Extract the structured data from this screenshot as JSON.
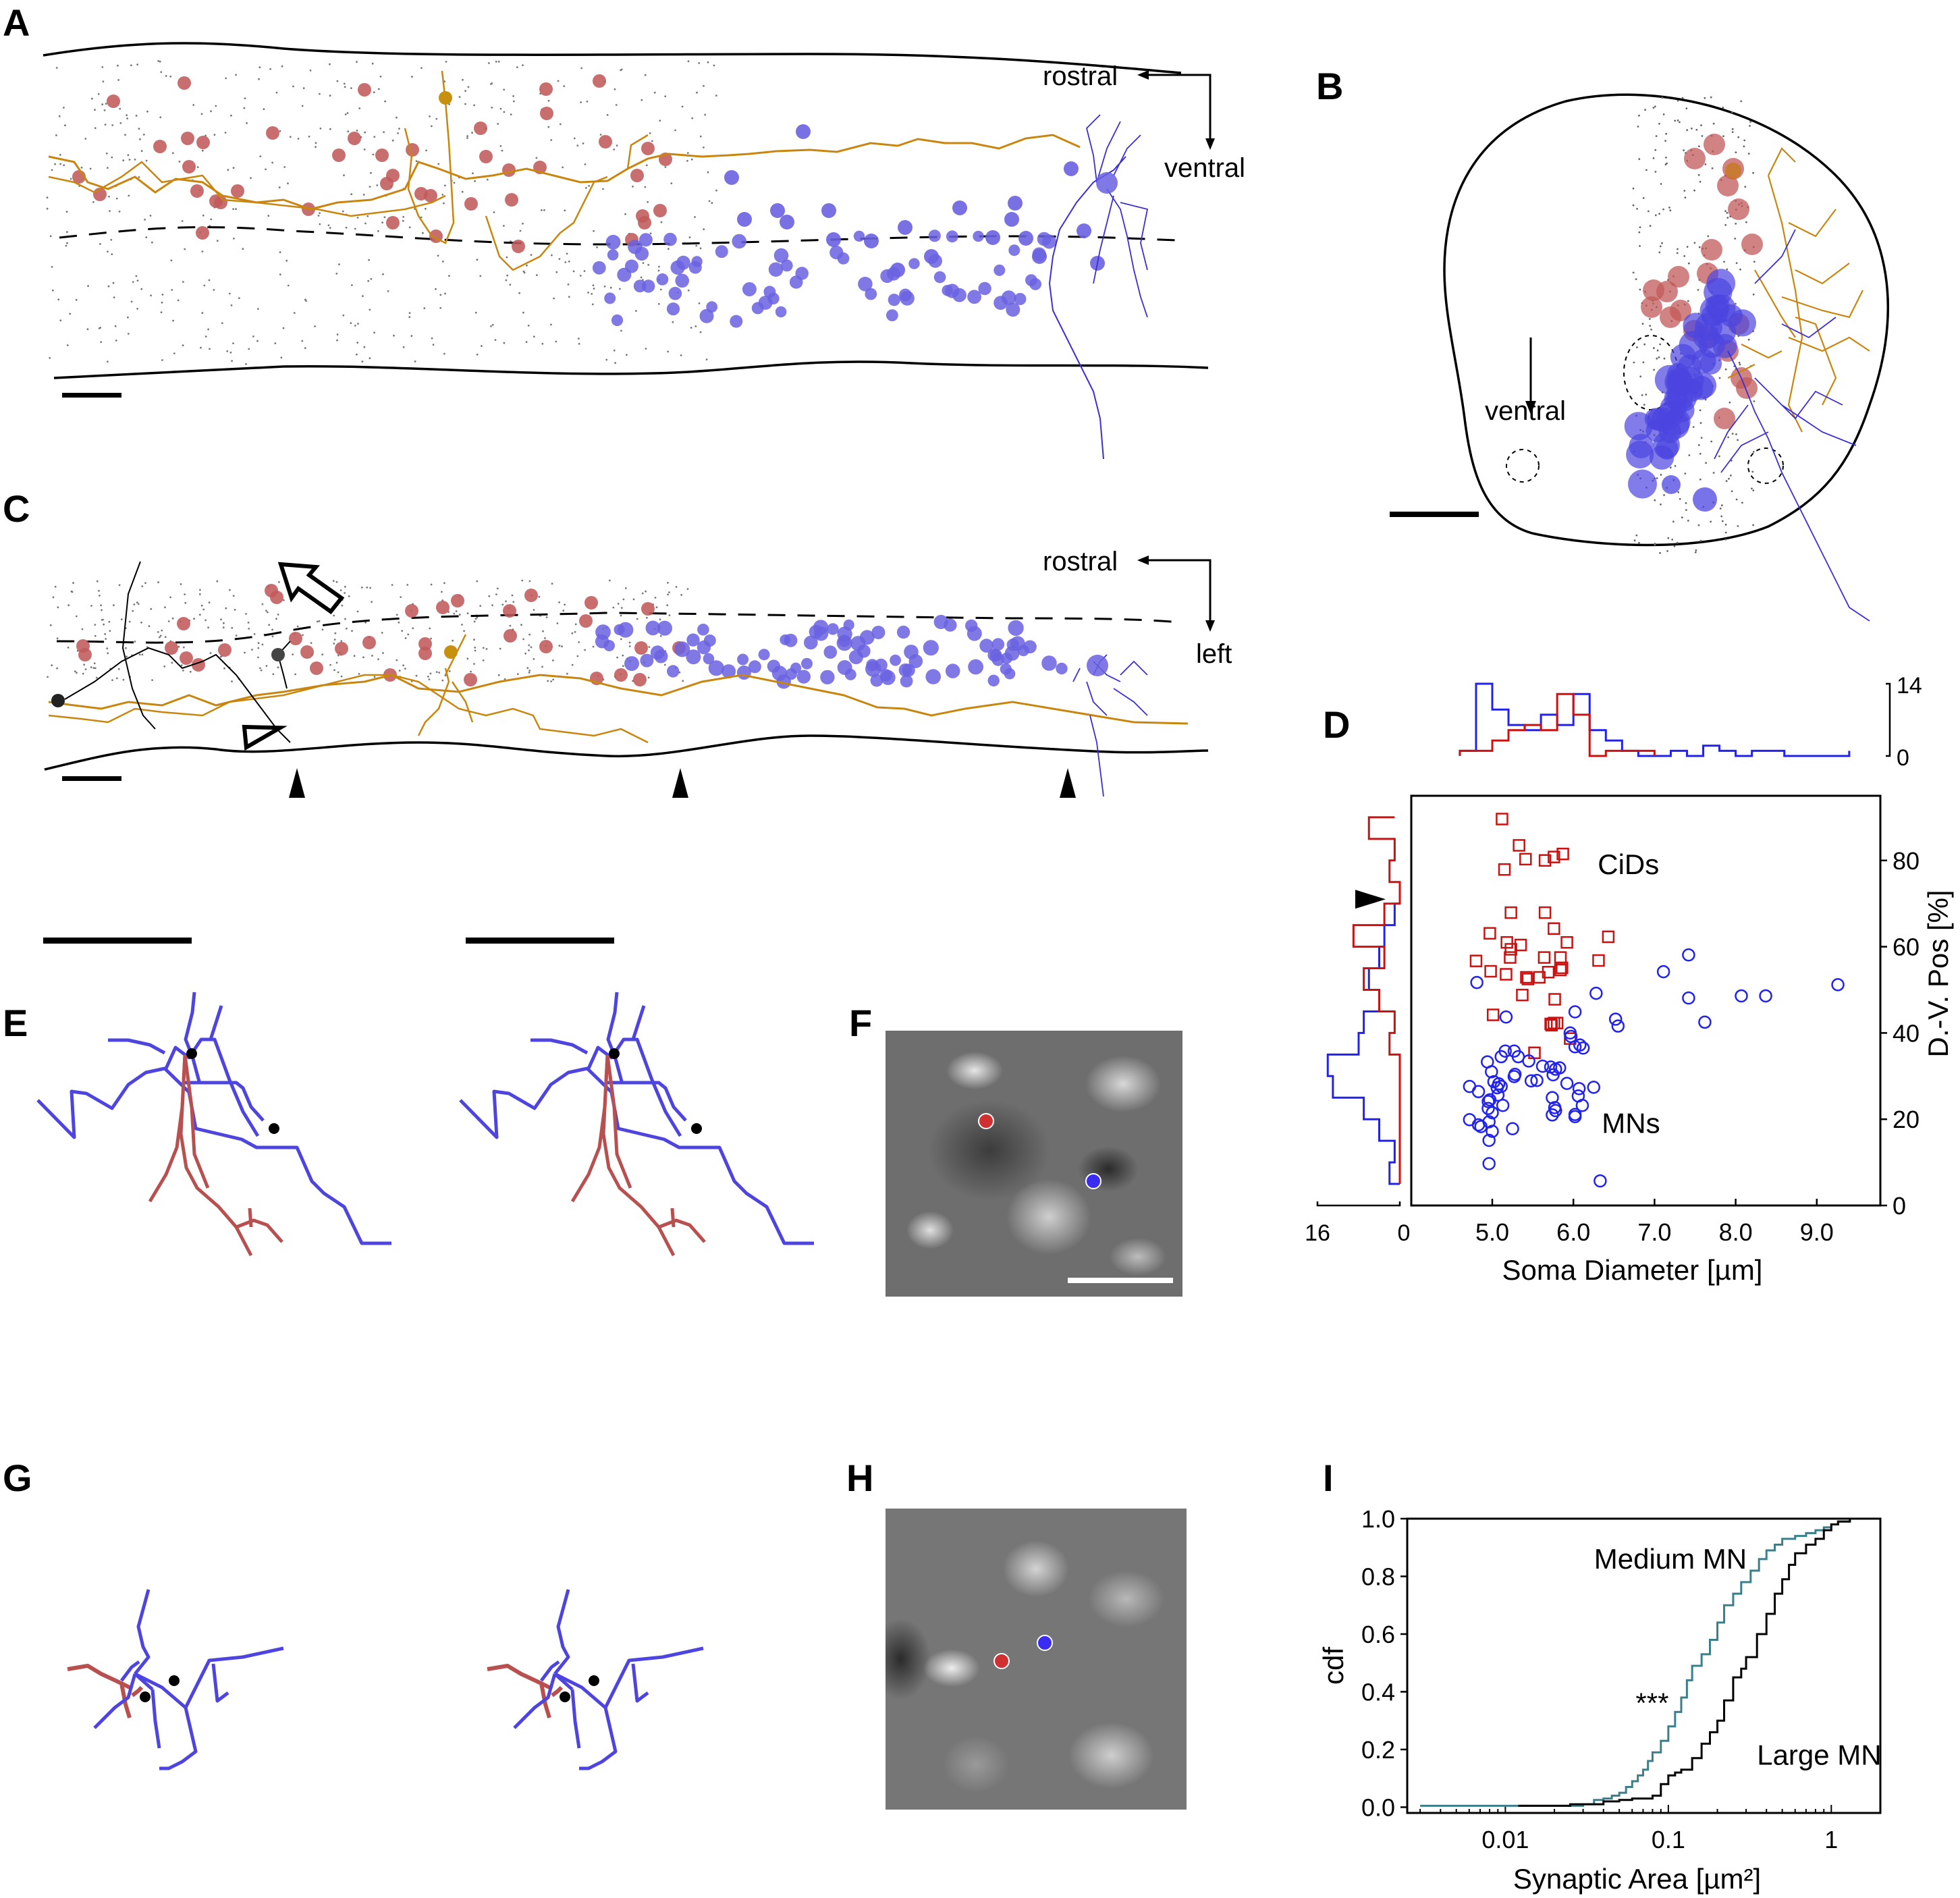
{
  "figure": {
    "panel_letters": [
      "A",
      "B",
      "C",
      "D",
      "E",
      "F",
      "G",
      "H",
      "I"
    ],
    "colors": {
      "cid_red": "#c25a5a",
      "cid_marker_red": "#cc1111",
      "mn_blue": "#6a62e0",
      "mn_marker_blue": "#2222ee",
      "axon_orange": "#c8860f",
      "medium_mn_teal": "#3b7f8a",
      "large_mn_black": "#000000"
    }
  },
  "panel_a": {
    "orientation": {
      "horizontal": "rostral",
      "vertical": "ventral"
    },
    "description": "Lateral view of spinal cord with CiD somata (red), MN somata (blue), reconstructed CiD (orange) and MN (blue) arbors"
  },
  "panel_b": {
    "orientation": {
      "vertical": "ventral"
    },
    "description": "Cross-sectional view of spinal cord"
  },
  "panel_c": {
    "orientation": {
      "horizontal": "rostral",
      "vertical": "left"
    },
    "description": "Dorsal view; open arrow, open arrowhead and three filled arrowheads mark features",
    "arrowheads_count": 3
  },
  "panel_e": {
    "description": "Stereo pair of CiD (red) and MN (blue) skeleton segments with synapse markers",
    "synapse_count": 2
  },
  "panel_f": {
    "description": "EM image of synapse; red dot = presynaptic, blue dot = postsynaptic"
  },
  "panel_g": {
    "description": "Stereo pair of CiD (red) and MN (blue) skeleton segments with synapse markers",
    "synapse_count": 2
  },
  "panel_h": {
    "description": "EM image of synapse; red dot = presynaptic, blue dot = postsynaptic"
  },
  "chart_data": [
    {
      "id": "D",
      "type": "scatter",
      "title": "",
      "xlabel": "Soma Diameter [µm]",
      "ylabel": "D.-V. Pos [%]",
      "xlim": [
        4.0,
        9.8
      ],
      "ylim": [
        0,
        95
      ],
      "xticks": [
        5.0,
        6.0,
        7.0,
        8.0,
        9.0
      ],
      "xtick_labels": [
        "5.0",
        "6.0",
        "7.0",
        "8.0",
        "9.0"
      ],
      "yticks": [
        0,
        20,
        40,
        60,
        80
      ],
      "ytick_labels": [
        "0",
        "20",
        "40",
        "60",
        "80"
      ],
      "grid": false,
      "annotations": [
        {
          "text": "CiDs",
          "x": 6.3,
          "y": 79
        },
        {
          "text": "MNs",
          "x": 6.35,
          "y": 19
        }
      ],
      "series": [
        {
          "name": "CiDs",
          "marker": "square",
          "color": "#cc1111",
          "points": [
            [
              5.12,
              89.6
            ],
            [
              5.33,
              83.5
            ],
            [
              5.41,
              80.3
            ],
            [
              5.65,
              80.0
            ],
            [
              5.76,
              80.8
            ],
            [
              5.87,
              81.5
            ],
            [
              5.15,
              77.9
            ],
            [
              5.23,
              67.9
            ],
            [
              5.65,
              67.9
            ],
            [
              4.97,
              63.1
            ],
            [
              5.18,
              61.0
            ],
            [
              5.35,
              60.4
            ],
            [
              5.76,
              64.2
            ],
            [
              5.92,
              61.0
            ],
            [
              6.43,
              62.3
            ],
            [
              5.23,
              59.4
            ],
            [
              5.22,
              57.5
            ],
            [
              5.64,
              57.5
            ],
            [
              5.84,
              57.5
            ],
            [
              4.8,
              56.7
            ],
            [
              4.98,
              54.3
            ],
            [
              5.17,
              53.6
            ],
            [
              5.44,
              52.5
            ],
            [
              5.42,
              52.9
            ],
            [
              5.58,
              52.9
            ],
            [
              5.69,
              54.1
            ],
            [
              5.86,
              55.1
            ],
            [
              5.84,
              54.6
            ],
            [
              6.31,
              56.8
            ],
            [
              5.37,
              48.8
            ],
            [
              5.77,
              47.8
            ],
            [
              5.01,
              44.2
            ],
            [
              5.72,
              42.1
            ],
            [
              5.76,
              42.3
            ],
            [
              5.8,
              42.3
            ],
            [
              5.73,
              41.8
            ],
            [
              5.96,
              38.7
            ],
            [
              5.52,
              35.4
            ]
          ]
        },
        {
          "name": "MNs",
          "marker": "circle",
          "color": "#2222ee",
          "points": [
            [
              4.81,
              51.7
            ],
            [
              5.17,
              43.7
            ],
            [
              6.02,
              44.9
            ],
            [
              6.28,
              49.2
            ],
            [
              7.11,
              54.2
            ],
            [
              7.42,
              58.1
            ],
            [
              7.42,
              48.1
            ],
            [
              7.62,
              42.5
            ],
            [
              8.07,
              48.6
            ],
            [
              8.37,
              48.6
            ],
            [
              9.26,
              51.2
            ],
            [
              6.52,
              43.2
            ],
            [
              6.55,
              41.6
            ],
            [
              5.96,
              40.0
            ],
            [
              6.02,
              36.8
            ],
            [
              6.08,
              37.2
            ],
            [
              6.12,
              36.5
            ],
            [
              5.97,
              39.2
            ],
            [
              5.16,
              35.8
            ],
            [
              5.27,
              35.8
            ],
            [
              5.11,
              34.5
            ],
            [
              5.32,
              34.5
            ],
            [
              5.45,
              33.5
            ],
            [
              4.94,
              33.3
            ],
            [
              5.62,
              32.3
            ],
            [
              5.72,
              32.1
            ],
            [
              5.78,
              31.6
            ],
            [
              5.83,
              31.9
            ],
            [
              5.75,
              30.3
            ],
            [
              4.99,
              31.0
            ],
            [
              5.27,
              29.9
            ],
            [
              5.28,
              30.4
            ],
            [
              5.48,
              28.9
            ],
            [
              5.55,
              29.0
            ],
            [
              5.92,
              28.3
            ],
            [
              5.02,
              28.7
            ],
            [
              5.08,
              28.2
            ],
            [
              5.11,
              27.6
            ],
            [
              5.06,
              27.3
            ],
            [
              4.72,
              27.6
            ],
            [
              4.83,
              26.4
            ],
            [
              6.07,
              27.1
            ],
            [
              6.25,
              27.4
            ],
            [
              6.06,
              25.4
            ],
            [
              5.07,
              25.6
            ],
            [
              4.97,
              24.5
            ],
            [
              4.95,
              24.1
            ],
            [
              5.13,
              23.2
            ],
            [
              4.95,
              22.5
            ],
            [
              5.0,
              21.5
            ],
            [
              5.74,
              25.0
            ],
            [
              5.77,
              22.7
            ],
            [
              5.78,
              22.0
            ],
            [
              5.74,
              21.0
            ],
            [
              6.02,
              21.1
            ],
            [
              6.11,
              23.2
            ],
            [
              4.72,
              19.9
            ],
            [
              4.83,
              18.7
            ],
            [
              4.86,
              18.3
            ],
            [
              4.96,
              19.4
            ],
            [
              5.0,
              17.2
            ],
            [
              5.25,
              17.8
            ],
            [
              4.96,
              15.1
            ],
            [
              6.02,
              20.6
            ],
            [
              4.96,
              9.7
            ],
            [
              6.33,
              5.7
            ]
          ]
        }
      ],
      "marginal_top": {
        "axis": "Soma Diameter [µm]",
        "ylim": [
          0,
          14
        ],
        "yticks": [
          0,
          14
        ],
        "bin_edges": [
          4.6,
          4.8,
          5.0,
          5.2,
          5.4,
          5.6,
          5.8,
          6.0,
          6.2,
          6.4,
          6.6,
          6.8,
          7.0,
          7.2,
          7.4,
          7.6,
          7.8,
          8.0,
          8.2,
          8.4,
          8.6,
          8.8,
          9.0,
          9.2,
          9.4
        ],
        "series": [
          {
            "name": "MNs",
            "color": "#2222ee",
            "counts": [
              1,
              14,
              9,
              6,
              5,
              8,
              6,
              12,
              5,
              3,
              1,
              0,
              0,
              1,
              0,
              2,
              1,
              0,
              1,
              1,
              0,
              0,
              0,
              0,
              1
            ]
          },
          {
            "name": "CiDs",
            "color": "#cc1111",
            "counts": [
              1,
              1,
              3,
              5,
              6,
              5,
              12,
              8,
              0,
              1,
              1,
              1
            ]
          }
        ]
      },
      "marginal_left": {
        "axis": "D.-V. Pos [%]",
        "xlim": [
          16,
          0
        ],
        "xticks": [
          16,
          0
        ],
        "xtick_labels": [
          "16",
          "0"
        ],
        "bin_edges_pct": [
          5,
          10,
          15,
          20,
          25,
          30,
          35,
          40,
          45,
          50,
          55,
          60,
          65,
          70,
          75,
          80,
          85,
          90
        ],
        "series": [
          {
            "name": "MNs",
            "color": "#2222ee",
            "counts": [
              2,
              1,
              4,
              7,
              13,
              14,
              8,
              7,
              4,
              6,
              4,
              3,
              1
            ]
          },
          {
            "name": "CiDs",
            "color": "#cc1111",
            "counts": [
              0,
              0,
              0,
              0,
              0,
              0,
              2,
              1,
              4,
              7,
              3,
              9,
              3,
              0,
              2,
              1,
              6,
              1
            ]
          }
        ],
        "arrowhead_marker_pct": 71
      }
    },
    {
      "id": "I",
      "type": "line",
      "title": "",
      "xlabel": "Synaptic Area [µm²]",
      "ylabel": "cdf",
      "xscale": "log",
      "xlim": [
        0.0025,
        2.0
      ],
      "ylim": [
        -0.02,
        1.0
      ],
      "xticks": [
        0.01,
        0.1,
        1
      ],
      "xtick_labels": [
        "0.01",
        "0.1",
        "1"
      ],
      "yticks": [
        0.0,
        0.2,
        0.4,
        0.6,
        0.8,
        1.0
      ],
      "ytick_labels": [
        "0.0",
        "0.2",
        "0.4",
        "0.6",
        "0.8",
        "1.0"
      ],
      "grid": false,
      "annotations": [
        {
          "text": "Medium MN",
          "x": 0.035,
          "y": 0.86
        },
        {
          "text": "Large MN",
          "x": 0.35,
          "y": 0.18
        },
        {
          "text": "***",
          "x": 0.063,
          "y": 0.36
        }
      ],
      "series": [
        {
          "name": "Medium MN",
          "color": "#3b7f8a",
          "x": [
            0.003,
            0.02,
            0.03,
            0.035,
            0.04,
            0.045,
            0.05,
            0.055,
            0.06,
            0.065,
            0.07,
            0.075,
            0.08,
            0.09,
            0.1,
            0.11,
            0.12,
            0.13,
            0.14,
            0.16,
            0.18,
            0.2,
            0.22,
            0.25,
            0.28,
            0.32,
            0.36,
            0.4,
            0.45,
            0.5,
            0.6,
            0.7,
            0.8,
            0.9,
            1.0,
            1.1,
            1.3
          ],
          "y": [
            0.005,
            0.005,
            0.01,
            0.025,
            0.03,
            0.04,
            0.05,
            0.07,
            0.09,
            0.11,
            0.13,
            0.16,
            0.19,
            0.23,
            0.28,
            0.33,
            0.38,
            0.44,
            0.49,
            0.53,
            0.58,
            0.64,
            0.7,
            0.74,
            0.78,
            0.82,
            0.86,
            0.89,
            0.91,
            0.93,
            0.94,
            0.95,
            0.96,
            0.97,
            0.98,
            0.99,
            1.0
          ]
        },
        {
          "name": "Large MN",
          "color": "#000000",
          "x": [
            0.012,
            0.025,
            0.04,
            0.05,
            0.06,
            0.07,
            0.08,
            0.09,
            0.1,
            0.11,
            0.12,
            0.14,
            0.16,
            0.18,
            0.2,
            0.22,
            0.25,
            0.28,
            0.3,
            0.35,
            0.4,
            0.45,
            0.5,
            0.55,
            0.6,
            0.7,
            0.8,
            0.9,
            1.0,
            1.1,
            1.3
          ],
          "y": [
            0.005,
            0.01,
            0.02,
            0.025,
            0.03,
            0.03,
            0.04,
            0.08,
            0.11,
            0.12,
            0.13,
            0.17,
            0.22,
            0.26,
            0.3,
            0.37,
            0.45,
            0.48,
            0.52,
            0.6,
            0.67,
            0.74,
            0.79,
            0.84,
            0.88,
            0.91,
            0.93,
            0.96,
            0.98,
            0.99,
            1.0
          ]
        }
      ]
    }
  ]
}
